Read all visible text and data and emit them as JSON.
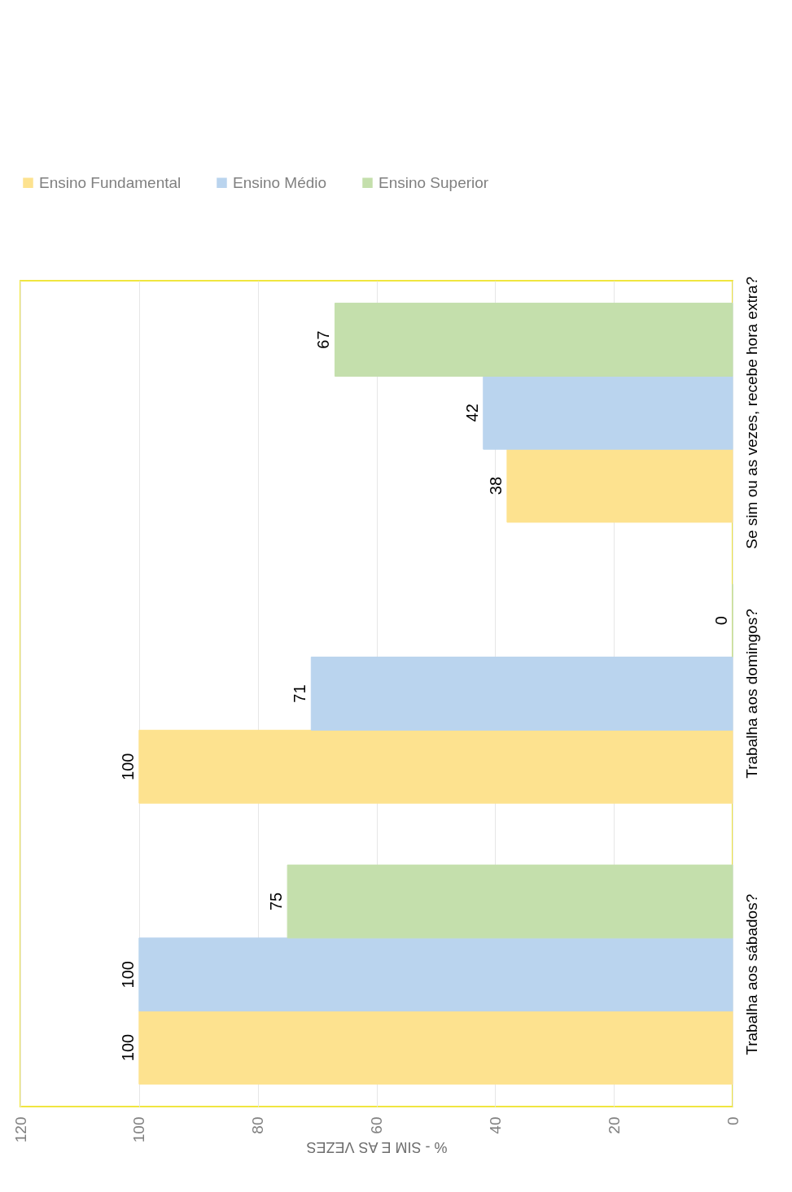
{
  "chart_data": {
    "type": "bar",
    "orientation": "horizontal",
    "categories": [
      "Se sim ou as vezes,  recebe hora  extra?",
      "Trabalha  aos domingos?",
      "Trabalha  aos sábados?"
    ],
    "series": [
      {
        "name": "Ensino Fundamental",
        "color": "#fde28f",
        "values": [
          38,
          100,
          100
        ]
      },
      {
        "name": "Ensino Médio",
        "color": "#bad4ee",
        "values": [
          42,
          71,
          100
        ]
      },
      {
        "name": "Ensino Superior",
        "color": "#c4dfac",
        "values": [
          67,
          0,
          75
        ]
      }
    ],
    "xlabel": "% - SIM E AS VEZES",
    "xlim": [
      120,
      0
    ],
    "xticks": [
      120,
      100,
      80,
      60,
      40,
      20,
      0
    ],
    "grid": "x",
    "legend": "top",
    "data_labels": true
  }
}
